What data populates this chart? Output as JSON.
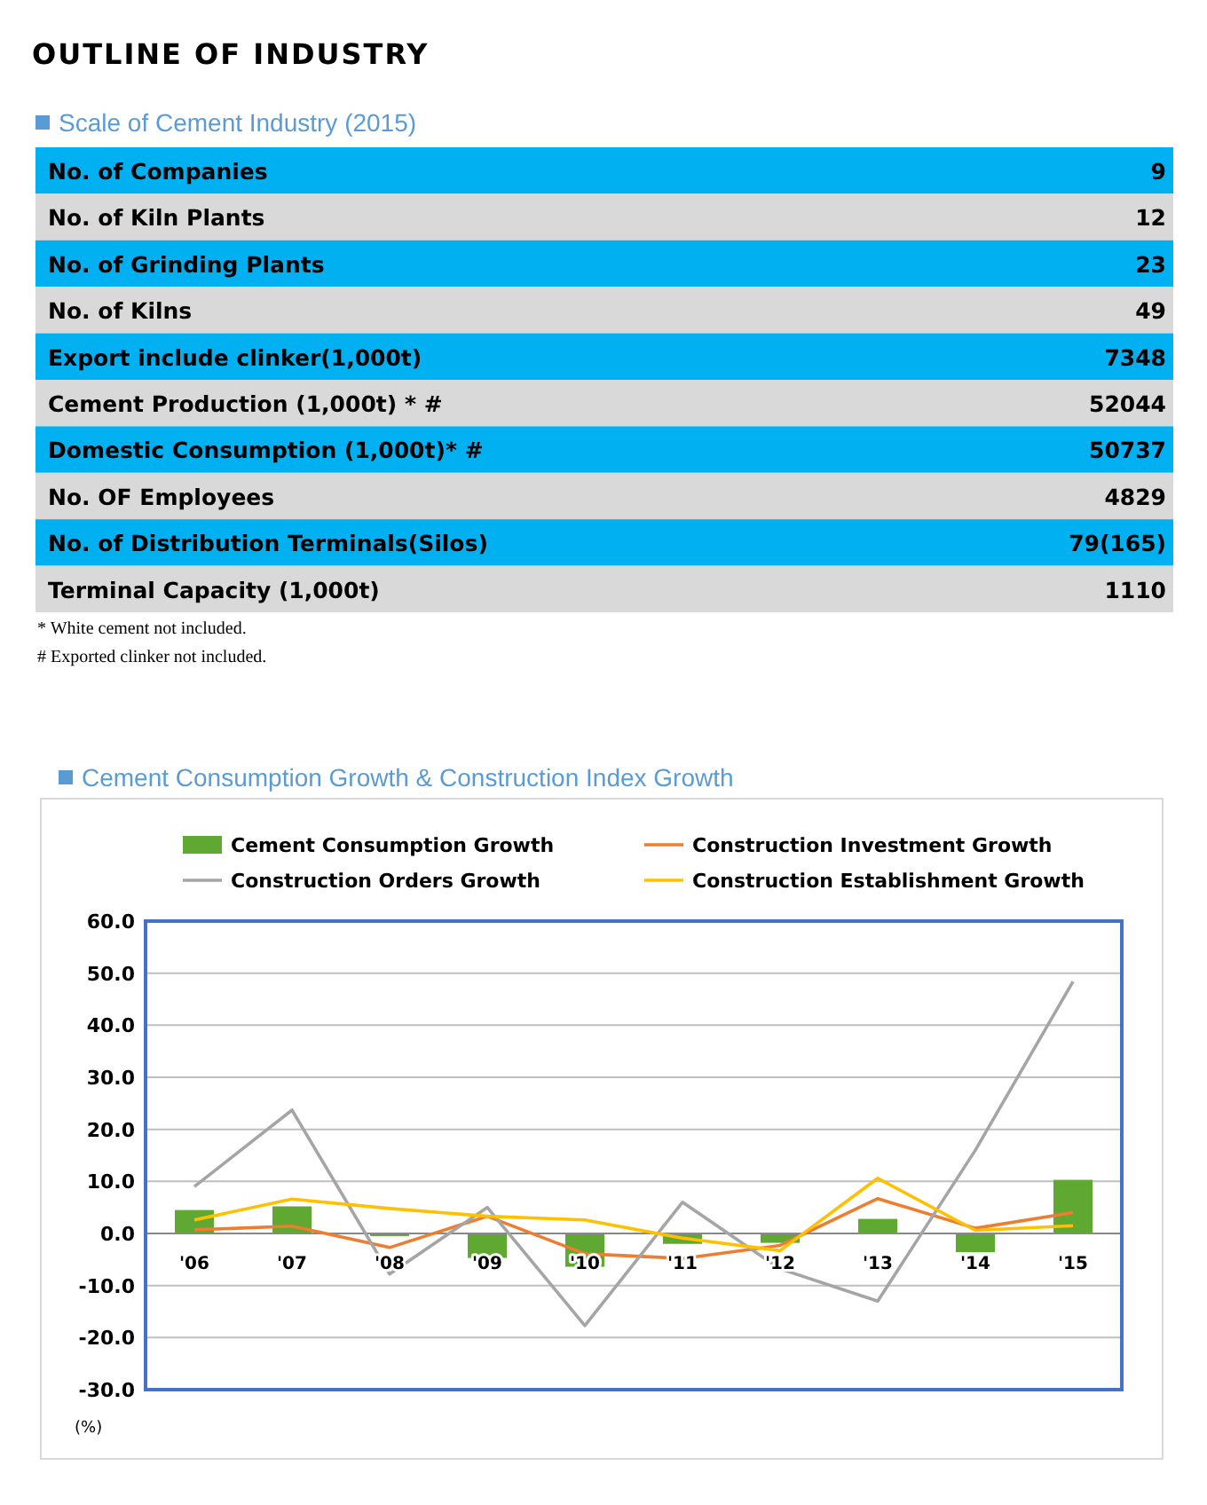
{
  "chart_data": [
    {
      "type": "other",
      "title": "OUTLINE OF INDUSTRY",
      "subtitle": "Scale of Cement Industry (2015)",
      "categories": [
        "No. of Companies",
        "No. of Kiln Plants",
        "No. of Grinding Plants",
        "No. of Kilns",
        "Export include clinker(1,000t)",
        "Cement Production (1,000t) * #",
        "Domestic Consumption (1,000t)* #",
        "No. OF Employees",
        "No. of Distribution Terminals(Silos)",
        "Terminal Capacity (1,000t)"
      ],
      "value_labels": [
        "9",
        "12",
        "23",
        "49",
        "7348",
        "52044",
        "50737",
        "4829",
        "79(165)",
        "1110"
      ],
      "colors": [
        "#00b0f0",
        "#d9d9d9"
      ],
      "annotations": [
        "* White cement not included.",
        "# Exported clinker not included."
      ]
    },
    {
      "type": "bar",
      "title": "Cement Consumption Growth & Construction Index Growth",
      "ylabel": "(%)",
      "categories": [
        "'06",
        "'07",
        "'08",
        "'09",
        "'10",
        "'11",
        "'12",
        "'13",
        "'14",
        "'15"
      ],
      "series": [
        {
          "name": "Cement Consumption Growth",
          "type": "bar",
          "color": "#5fa832",
          "values": [
            4.5,
            5.2,
            -0.5,
            -4.7,
            -6.4,
            -2.0,
            -1.8,
            2.8,
            -3.6,
            10.3
          ]
        },
        {
          "name": "Construction Investment Growth",
          "type": "line",
          "color": "#ed7d31",
          "values": [
            0.7,
            1.4,
            -2.7,
            3.3,
            -3.9,
            -4.8,
            -2.3,
            6.7,
            1.0,
            4.0
          ]
        },
        {
          "name": "Construction Orders Growth",
          "type": "line",
          "color": "#a5a5a5",
          "values": [
            9.0,
            23.7,
            -7.8,
            5.0,
            -17.7,
            6.0,
            -6.8,
            -13.0,
            16.0,
            48.4
          ]
        },
        {
          "name": "Construction Establishment Growth",
          "type": "line",
          "color": "#ffc000",
          "values": [
            2.6,
            6.6,
            4.8,
            3.3,
            2.6,
            -0.9,
            -3.3,
            10.6,
            0.6,
            1.5
          ]
        }
      ],
      "ylim": [
        -30,
        60
      ],
      "yticks": [
        {
          "value": 60,
          "label": "60.0"
        },
        {
          "value": 50,
          "label": "50.0"
        },
        {
          "value": 40,
          "label": "40.0"
        },
        {
          "value": 30,
          "label": "30.0"
        },
        {
          "value": 20,
          "label": "20.0"
        },
        {
          "value": 10,
          "label": "10.0"
        },
        {
          "value": 0,
          "label": "0.0"
        },
        {
          "value": -10,
          "label": "-10.0"
        },
        {
          "value": -20,
          "label": "-20.0"
        },
        {
          "value": -30,
          "label": "-30.0"
        }
      ],
      "grid": "y",
      "legend": "top",
      "marker": "none",
      "line_style": "solid"
    }
  ]
}
